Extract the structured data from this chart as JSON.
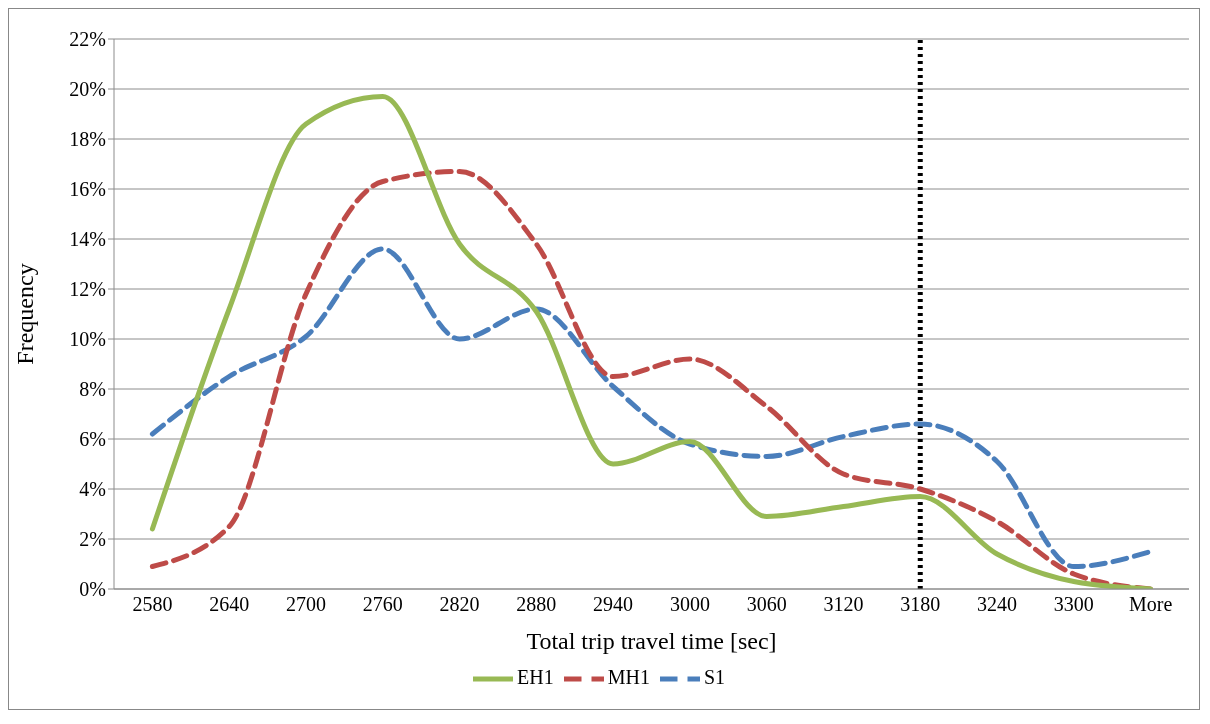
{
  "chart_data": {
    "type": "line",
    "xlabel": "Total trip travel time [sec]",
    "ylabel": "Frequency",
    "categories": [
      "2580",
      "2640",
      "2700",
      "2760",
      "2820",
      "2880",
      "2940",
      "3000",
      "3060",
      "3120",
      "3180",
      "3240",
      "3300",
      "More"
    ],
    "series": [
      {
        "name": "S1",
        "color": "#4a7ebb",
        "line_style": "dashed",
        "values": [
          6.2,
          8.5,
          10.1,
          13.6,
          10.0,
          11.2,
          8.1,
          5.8,
          5.3,
          6.1,
          6.6,
          5.1,
          0.9,
          1.5
        ]
      },
      {
        "name": "MH1",
        "color": "#be4b48",
        "line_style": "dashed",
        "values": [
          0.9,
          2.5,
          11.8,
          16.3,
          16.7,
          13.8,
          8.5,
          9.2,
          7.3,
          4.6,
          4.0,
          2.7,
          0.6,
          0
        ]
      },
      {
        "name": "EH1",
        "color": "#98b954",
        "line_style": "solid",
        "values": [
          2.4,
          11.2,
          18.6,
          19.7,
          13.8,
          11.1,
          5.0,
          5.9,
          2.9,
          3.3,
          3.7,
          1.4,
          0.3,
          0
        ]
      }
    ],
    "ylim": [
      0,
      22
    ],
    "yticks": [
      {
        "value": 0,
        "label": "0%"
      },
      {
        "value": 2,
        "label": "2%"
      },
      {
        "value": 4,
        "label": "4%"
      },
      {
        "value": 6,
        "label": "6%"
      },
      {
        "value": 8,
        "label": "8%"
      },
      {
        "value": 10,
        "label": "10%"
      },
      {
        "value": 12,
        "label": "12%"
      },
      {
        "value": 14,
        "label": "14%"
      },
      {
        "value": 16,
        "label": "16%"
      },
      {
        "value": 18,
        "label": "18%"
      },
      {
        "value": 20,
        "label": "20%"
      },
      {
        "value": 22,
        "label": "22%"
      }
    ],
    "grid": "y",
    "legend": "bottom",
    "marker": "none",
    "ref_lines": [
      {
        "axis": "x",
        "value": "3180",
        "color": "#000000",
        "line_style": "dotted"
      }
    ]
  }
}
